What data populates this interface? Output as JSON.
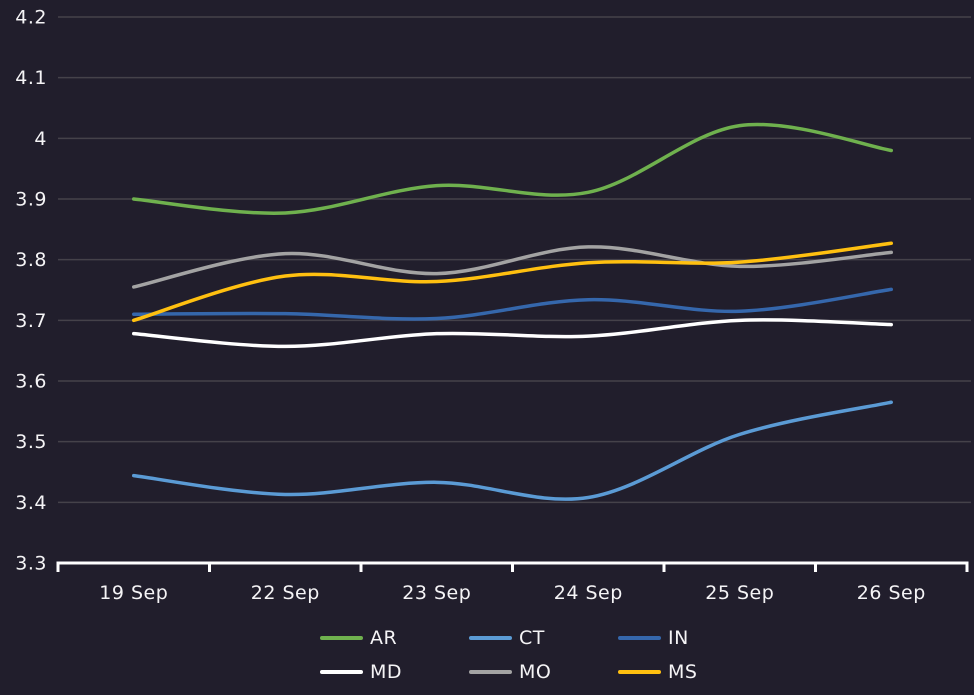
{
  "chart_data": {
    "type": "line",
    "title": "",
    "xlabel": "",
    "ylabel": "",
    "categories": [
      "19 Sep",
      "22 Sep",
      "23 Sep",
      "24 Sep",
      "25 Sep",
      "26 Sep"
    ],
    "y_ticks": [
      "4.2",
      "4.1",
      "4",
      "3.9",
      "3.8",
      "3.7",
      "3.6",
      "3.5",
      "3.4",
      "3.3"
    ],
    "ylim": [
      3.3,
      4.2
    ],
    "grid": true,
    "legend_position": "bottom",
    "series": [
      {
        "name": "AR",
        "color": "#6fb14e",
        "values": [
          3.9,
          3.877,
          3.922,
          3.911,
          4.021,
          3.98
        ]
      },
      {
        "name": "CT",
        "color": "#5b9bd5",
        "values": [
          3.444,
          3.413,
          3.433,
          3.408,
          3.512,
          3.565
        ]
      },
      {
        "name": "IN",
        "color": "#3567ac",
        "values": [
          3.71,
          3.711,
          3.703,
          3.734,
          3.715,
          3.751
        ]
      },
      {
        "name": "MD",
        "color": "#ffffff",
        "values": [
          3.678,
          3.657,
          3.678,
          3.674,
          3.7,
          3.693
        ]
      },
      {
        "name": "MO",
        "color": "#a3a3a3",
        "values": [
          3.755,
          3.81,
          3.777,
          3.821,
          3.789,
          3.812
        ]
      },
      {
        "name": "MS",
        "color": "#ffc010",
        "values": [
          3.7,
          3.773,
          3.764,
          3.795,
          3.796,
          3.827
        ]
      }
    ],
    "colors": {
      "background": "#211e2c",
      "grid": "#45424a",
      "axis": "#ffffff",
      "text": "#f5f4f6"
    }
  }
}
